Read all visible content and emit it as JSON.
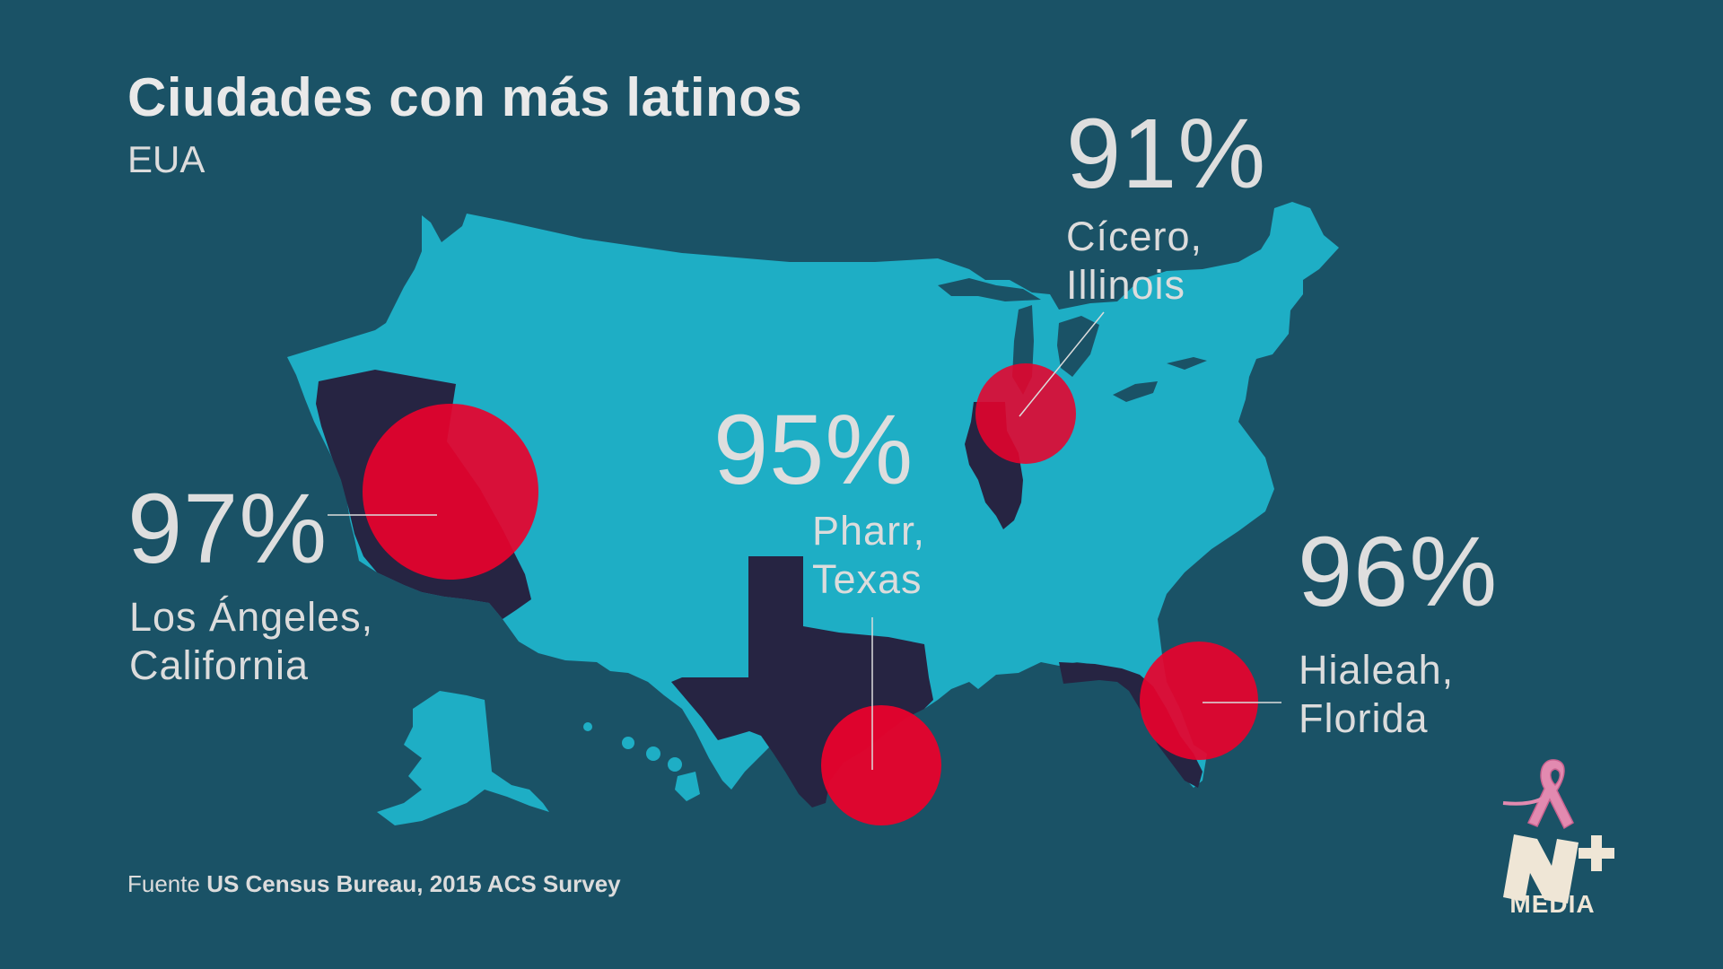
{
  "title": "Ciudades con más latinos",
  "subtitle": "EUA",
  "cities": [
    {
      "percent": "97%",
      "line1": "Los Ángeles,",
      "line2": "California",
      "state": "California"
    },
    {
      "percent": "95%",
      "line1": "Pharr,",
      "line2": "Texas",
      "state": "Texas"
    },
    {
      "percent": "91%",
      "line1": "Cícero,",
      "line2": "Illinois",
      "state": "Illinois"
    },
    {
      "percent": "96%",
      "line1": "Hialeah,",
      "line2": "Florida",
      "state": "Florida"
    }
  ],
  "source": {
    "prefix": "Fuente",
    "text": "US Census Bureau, 2015 ACS Survey"
  },
  "logo": {
    "text": "MEDIA",
    "icon": "n-plus-logo",
    "ribbon": "pink-ribbon-icon"
  },
  "colors": {
    "background": "#1a5266",
    "map": "#1eaec5",
    "highlight_state": "#262442",
    "marker": "#e8022c",
    "text": "#dedede"
  }
}
